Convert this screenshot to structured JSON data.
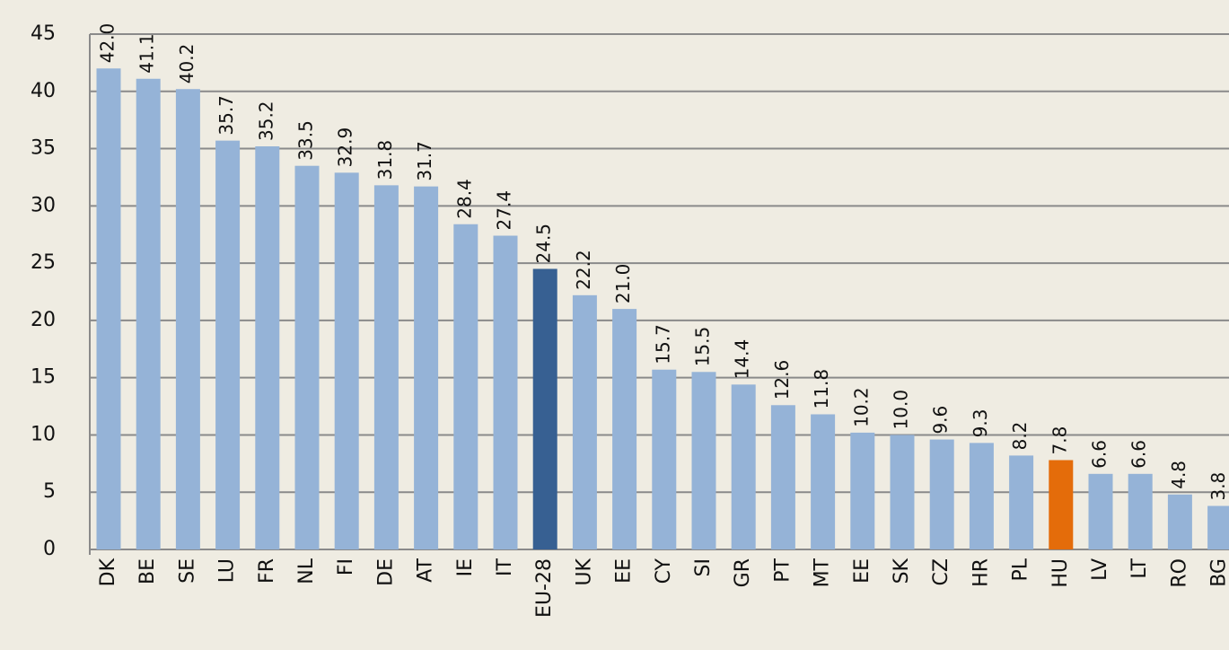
{
  "chart_data": {
    "type": "bar",
    "categories": [
      "DK",
      "BE",
      "SE",
      "LU",
      "FR",
      "NL",
      "FI",
      "DE",
      "AT",
      "IE",
      "IT",
      "EU-28",
      "UK",
      "EE",
      "CY",
      "SI",
      "GR",
      "PT",
      "MT",
      "EE",
      "SK",
      "CZ",
      "HR",
      "PL",
      "HU",
      "LV",
      "LT",
      "RO",
      "BG"
    ],
    "values": [
      42.0,
      41.1,
      40.2,
      35.7,
      35.2,
      33.5,
      32.9,
      31.8,
      31.7,
      28.4,
      27.4,
      24.5,
      22.2,
      21.0,
      15.7,
      15.5,
      14.4,
      12.6,
      11.8,
      10.2,
      10.0,
      9.6,
      9.3,
      8.2,
      7.8,
      6.6,
      6.6,
      4.8,
      3.8
    ],
    "value_labels": [
      "42.0",
      "41.1",
      "40.2",
      "35.7",
      "35.2",
      "33.5",
      "32.9",
      "31.8",
      "31.7",
      "28.4",
      "27.4",
      "24.5",
      "22.2",
      "21.0",
      "15.7",
      "15.5",
      "14.4",
      "12.6",
      "11.8",
      "10.2",
      "10.0",
      "9.6",
      "9.3",
      "8.2",
      "7.8",
      "6.6",
      "6.6",
      "4.8",
      "3.8"
    ],
    "colors": [
      "#95b3d7",
      "#95b3d7",
      "#95b3d7",
      "#95b3d7",
      "#95b3d7",
      "#95b3d7",
      "#95b3d7",
      "#95b3d7",
      "#95b3d7",
      "#95b3d7",
      "#95b3d7",
      "#376092",
      "#95b3d7",
      "#95b3d7",
      "#95b3d7",
      "#95b3d7",
      "#95b3d7",
      "#95b3d7",
      "#95b3d7",
      "#95b3d7",
      "#95b3d7",
      "#95b3d7",
      "#95b3d7",
      "#95b3d7",
      "#e46c0a",
      "#95b3d7",
      "#95b3d7",
      "#95b3d7",
      "#95b3d7"
    ],
    "ylim": [
      0,
      45
    ],
    "yticks": [
      0,
      5,
      10,
      15,
      20,
      25,
      30,
      35,
      40,
      45
    ],
    "grid": true
  }
}
